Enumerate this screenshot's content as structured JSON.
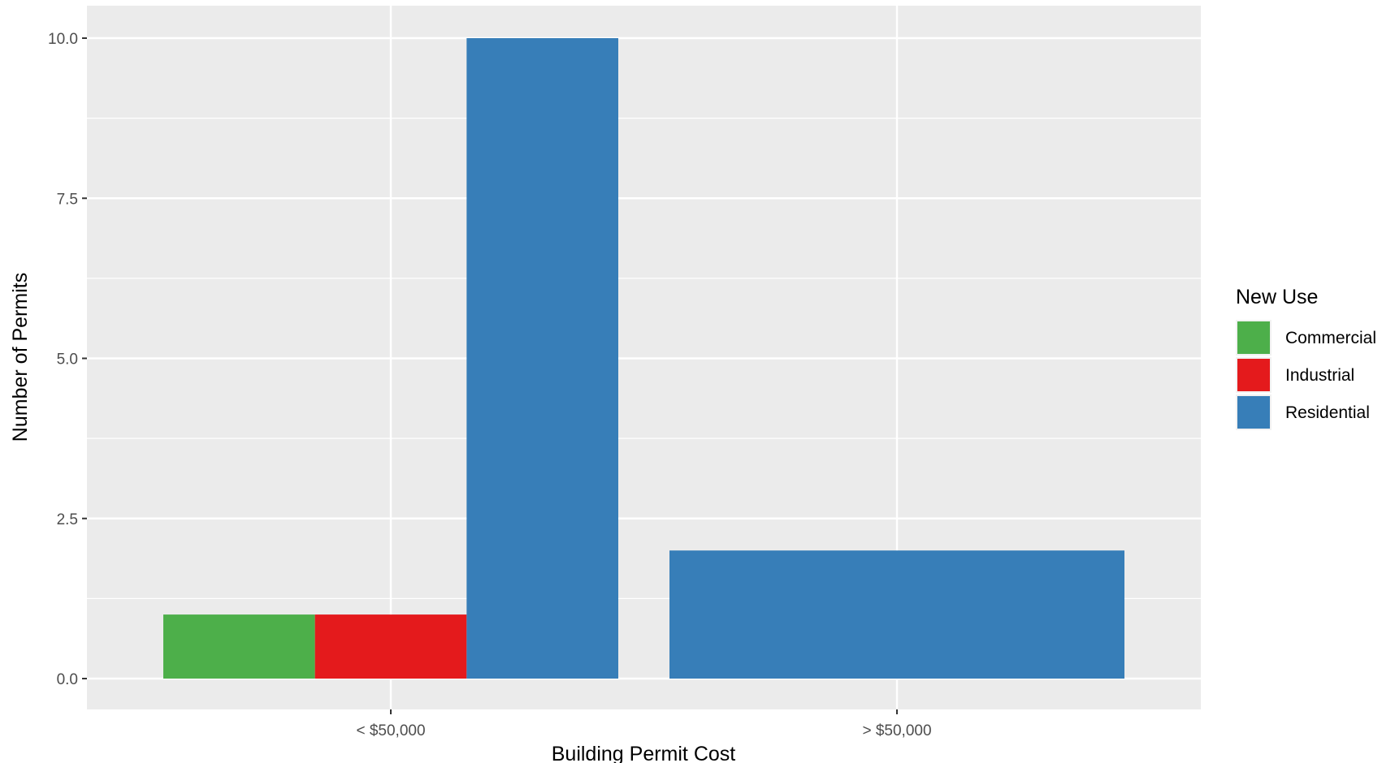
{
  "chart_data": {
    "type": "bar",
    "xlabel": "Building Permit Cost",
    "ylabel": "Number of Permits",
    "categories": [
      "< $50,000",
      "> $50,000"
    ],
    "ylim": [
      -0.95,
      10.5
    ],
    "yticks": [
      0.0,
      2.5,
      5.0,
      7.5,
      10.0
    ],
    "ytick_labels": [
      "0.0",
      "2.5",
      "5.0",
      "7.5",
      "10.0"
    ],
    "grid": true,
    "legend": {
      "title": "New Use",
      "position": "right"
    },
    "series": [
      {
        "name": "Commercial",
        "color": "#4DAF4A",
        "values": [
          1,
          null
        ]
      },
      {
        "name": "Industrial",
        "color": "#E41A1C",
        "values": [
          1,
          null
        ]
      },
      {
        "name": "Residential",
        "color": "#377EB8",
        "values": [
          10,
          2
        ]
      }
    ]
  }
}
